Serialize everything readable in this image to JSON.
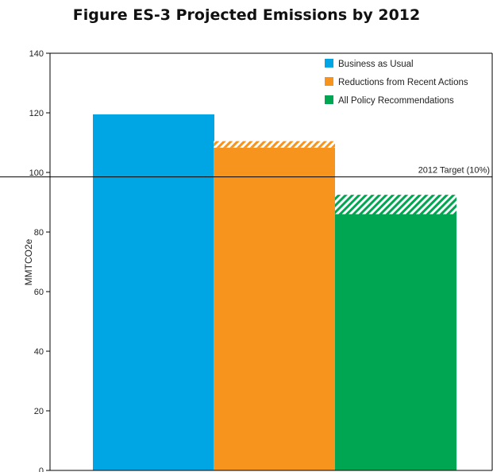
{
  "chart_data": {
    "type": "bar",
    "title": "Figure ES-3 Projected Emissions by 2012",
    "ylabel": "MMTCO2e",
    "xlabel": "",
    "ylim": [
      0,
      140
    ],
    "yticks": [
      0,
      20,
      40,
      60,
      80,
      100,
      120,
      140
    ],
    "grid": false,
    "legend_position": "top-right",
    "categories": [
      "Business as Usual",
      "Reductions from Recent Actions",
      "All Policy Recommendations"
    ],
    "series": [
      {
        "name": "Business as Usual",
        "color": "#00a6e4",
        "values": [
          119.5,
          null,
          null
        ]
      },
      {
        "name": "Reductions from Recent Actions",
        "color": "#f7941d",
        "values": [
          null,
          108.3,
          null
        ],
        "hatch_top": [
          null,
          110.5,
          null
        ]
      },
      {
        "name": "All Policy Recommendations",
        "color": "#00a651",
        "values": [
          null,
          null,
          86
        ],
        "hatch_top": [
          null,
          null,
          92.5
        ]
      }
    ],
    "target": {
      "value": 98.5,
      "label": "2012 Target (10%)"
    }
  }
}
